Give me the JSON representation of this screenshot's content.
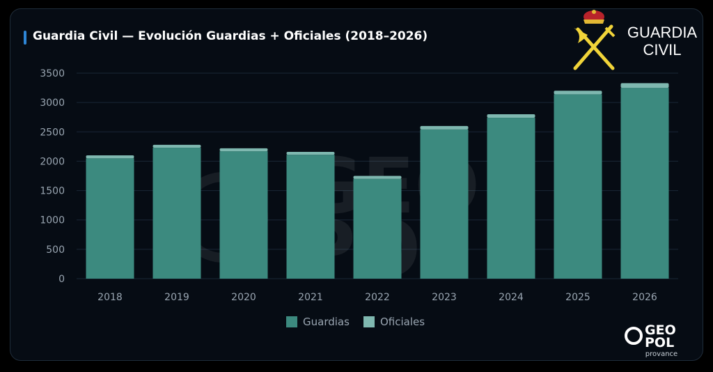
{
  "header": {
    "title": "Guardia Civil — Evolución Guardias + Oficiales (2018–2026)"
  },
  "brand": {
    "logo_line1": "GUARDIA",
    "logo_line2": "CIVIL",
    "watermark_line1": "GEO",
    "watermark_line2": "POL",
    "corner_line1": "GEO",
    "corner_line2": "POL",
    "corner_sub": "provance"
  },
  "colors": {
    "guardias": "#3c8a7f",
    "oficiales": "#7fb8b0",
    "grid": "#1a2736",
    "tick_text": "#9aa6b2",
    "background": "#060c14"
  },
  "chart_data": {
    "type": "bar",
    "stacked": true,
    "title": "Guardia Civil — Evolución Guardias + Oficiales (2018–2026)",
    "categories": [
      "2018",
      "2019",
      "2020",
      "2021",
      "2022",
      "2023",
      "2024",
      "2025",
      "2026"
    ],
    "series": [
      {
        "name": "Guardias",
        "values": [
          2050,
          2230,
          2170,
          2110,
          1700,
          2540,
          2740,
          3140,
          3250
        ]
      },
      {
        "name": "Oficiales",
        "values": [
          50,
          50,
          50,
          50,
          50,
          60,
          60,
          60,
          80
        ]
      }
    ],
    "ylim": [
      0,
      3500
    ],
    "yticks": [
      "0",
      "500",
      "1000",
      "1500",
      "2000",
      "2500",
      "3000",
      "3500"
    ],
    "xlabel": "",
    "ylabel": "",
    "grid": true,
    "legend_position": "bottom-center"
  }
}
